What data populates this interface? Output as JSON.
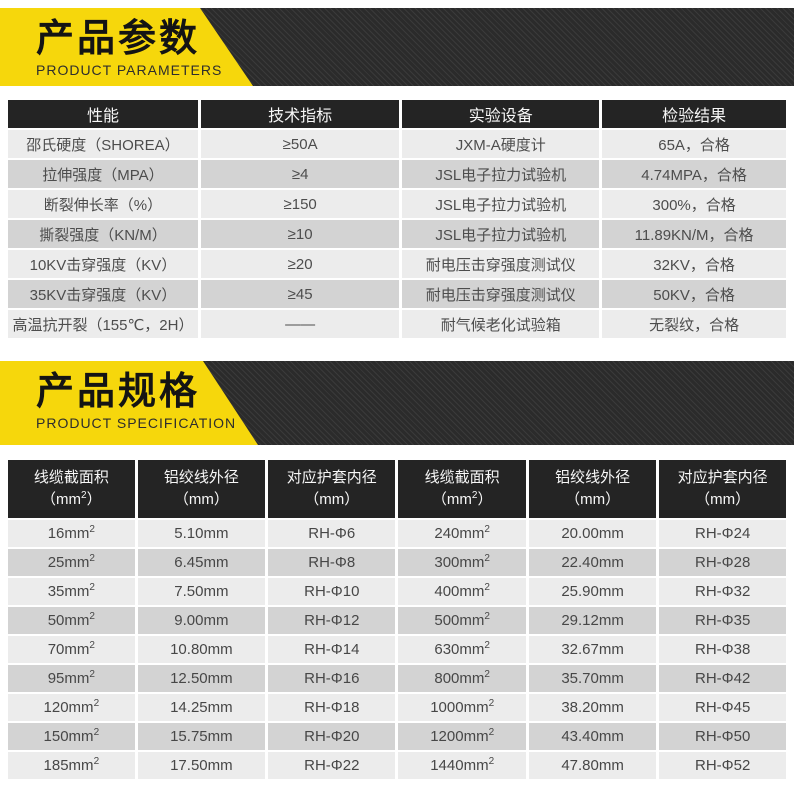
{
  "colors": {
    "accent_yellow": "#f6d70c",
    "banner_dark": "#2d2d2d",
    "table_header_bg": "#242424",
    "row_light": "#ececec",
    "row_dark": "#d3d3d3"
  },
  "section_parameters": {
    "title": "产品参数",
    "subtitle": "PRODUCT PARAMETERS",
    "table": {
      "headers": [
        "性能",
        "技术指标",
        "实验设备",
        "检验结果"
      ],
      "rows": [
        [
          "邵氏硬度（SHOREA）",
          "≥50A",
          "JXM-A硬度计",
          "65A，合格"
        ],
        [
          "拉伸强度（MPA）",
          "≥4",
          "JSL电子拉力试验机",
          "4.74MPA，合格"
        ],
        [
          "断裂伸长率（%）",
          "≥150",
          "JSL电子拉力试验机",
          "300%，合格"
        ],
        [
          "撕裂强度（KN/M）",
          "≥10",
          "JSL电子拉力试验机",
          "11.89KN/M，合格"
        ],
        [
          "10KV击穿强度（KV）",
          "≥20",
          "耐电压击穿强度测试仪",
          "32KV，合格"
        ],
        [
          "35KV击穿强度（KV）",
          "≥45",
          "耐电压击穿强度测试仪",
          "50KV，合格"
        ],
        [
          "高温抗开裂（155℃，2H）",
          "——",
          "耐气候老化试验箱",
          "无裂纹，合格"
        ]
      ]
    }
  },
  "section_specification": {
    "title": "产品规格",
    "subtitle": "PRODUCT SPECIFICATION",
    "table": {
      "headers": [
        {
          "l1": "线缆截面积",
          "l2": "（mm²）"
        },
        {
          "l1": "铝绞线外径",
          "l2": "（mm）"
        },
        {
          "l1": "对应护套内径",
          "l2": "（mm）"
        },
        {
          "l1": "线缆截面积",
          "l2": "（mm²）"
        },
        {
          "l1": "铝绞线外径",
          "l2": "（mm）"
        },
        {
          "l1": "对应护套内径",
          "l2": "（mm）"
        }
      ],
      "rows": [
        [
          "16mm²",
          "5.10mm",
          "RH-Φ6",
          "240mm²",
          "20.00mm",
          "RH-Φ24"
        ],
        [
          "25mm²",
          "6.45mm",
          "RH-Φ8",
          "300mm²",
          "22.40mm",
          "RH-Φ28"
        ],
        [
          "35mm²",
          "7.50mm",
          "RH-Φ10",
          "400mm²",
          "25.90mm",
          "RH-Φ32"
        ],
        [
          "50mm²",
          "9.00mm",
          "RH-Φ12",
          "500mm²",
          "29.12mm",
          "RH-Φ35"
        ],
        [
          "70mm²",
          "10.80mm",
          "RH-Φ14",
          "630mm²",
          "32.67mm",
          "RH-Φ38"
        ],
        [
          "95mm²",
          "12.50mm",
          "RH-Φ16",
          "800mm²",
          "35.70mm",
          "RH-Φ42"
        ],
        [
          "120mm²",
          "14.25mm",
          "RH-Φ18",
          "1000mm²",
          "38.20mm",
          "RH-Φ45"
        ],
        [
          "150mm²",
          "15.75mm",
          "RH-Φ20",
          "1200mm²",
          "43.40mm",
          "RH-Φ50"
        ],
        [
          "185mm²",
          "17.50mm",
          "RH-Φ22",
          "1440mm²",
          "47.80mm",
          "RH-Φ52"
        ]
      ]
    }
  }
}
